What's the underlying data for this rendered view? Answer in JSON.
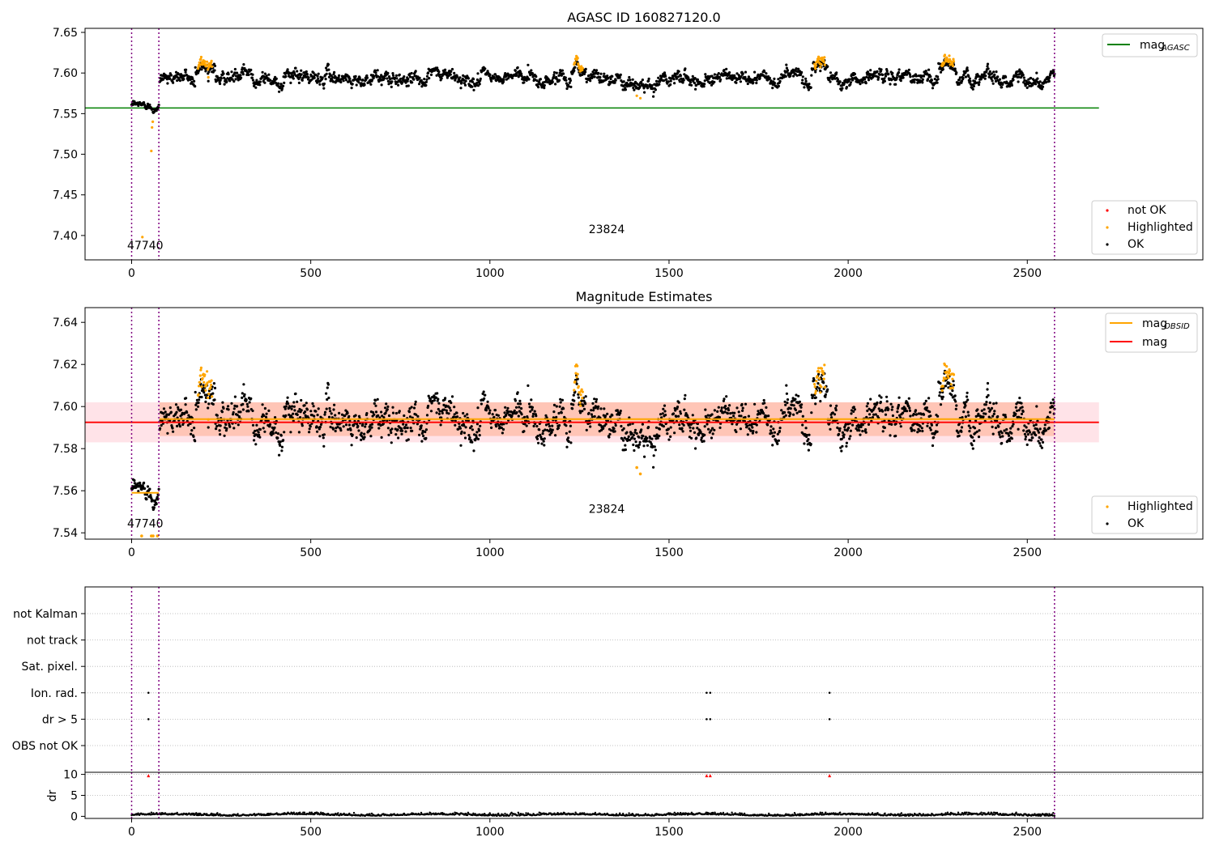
{
  "colors": {
    "ok": "#000000",
    "highlighted": "#ffa500",
    "not_ok": "#ff0000",
    "agasc_line": "#008000",
    "obsid_line": "#ffa500",
    "mag_line": "#ff0000",
    "obs_boundary": "#800080",
    "band_outer": "#ffc0cb",
    "band_inner": "#ffa07a",
    "grid": "#b0b0b0"
  },
  "chart_data": [
    {
      "type": "scatter",
      "title": "AGASC ID 160827120.0",
      "xlim": [
        -130,
        2990
      ],
      "ylim": [
        7.37,
        7.655
      ],
      "xticks": [
        0,
        500,
        1000,
        1500,
        2000,
        2500
      ],
      "yticks": [
        7.4,
        7.45,
        7.5,
        7.55,
        7.6,
        7.65
      ],
      "ytick_labels": [
        "7.40",
        "7.45",
        "7.50",
        "7.55",
        "7.60",
        "7.65"
      ],
      "obs_boundaries": [
        0,
        76,
        2576
      ],
      "obs_labels": [
        {
          "text": "47740",
          "x": 38,
          "y": 7.383
        },
        {
          "text": "23824",
          "x": 1326,
          "y": 7.403
        }
      ],
      "hlines": [
        {
          "name": "mag_AGASC",
          "y": 7.557,
          "x0": -130,
          "x1": 2700,
          "color": "#008000"
        }
      ],
      "segments": [
        {
          "x0": 0,
          "x1": 76,
          "mean": 7.559,
          "sigma": 0.004
        },
        {
          "x0": 78,
          "x1": 2576,
          "mean": 7.594,
          "sigma": 0.0075
        }
      ],
      "highlight_clusters": [
        {
          "x0": 185,
          "x1": 225,
          "offset": 0.022
        },
        {
          "x0": 1235,
          "x1": 1260,
          "offset": 0.02
        },
        {
          "x0": 1905,
          "x1": 1935,
          "offset": 0.016
        },
        {
          "x0": 2260,
          "x1": 2295,
          "offset": 0.018
        }
      ],
      "highlight_points": [
        {
          "x": 30,
          "y": 7.398
        },
        {
          "x": 55,
          "y": 7.504
        },
        {
          "x": 57,
          "y": 7.533
        },
        {
          "x": 59,
          "y": 7.54
        },
        {
          "x": 1410,
          "y": 7.572
        },
        {
          "x": 1420,
          "y": 7.569
        }
      ],
      "legend_lines": [
        {
          "label": "mag",
          "sub": "AGASC",
          "color": "#008000"
        }
      ],
      "legend_points": [
        {
          "label": "not OK",
          "color": "#ff0000"
        },
        {
          "label": "Highlighted",
          "color": "#ffa500"
        },
        {
          "label": "OK",
          "color": "#000000"
        }
      ]
    },
    {
      "type": "scatter",
      "title": "Magnitude Estimates",
      "xlim": [
        -130,
        2990
      ],
      "ylim": [
        7.537,
        7.647
      ],
      "xticks": [
        0,
        500,
        1000,
        1500,
        2000,
        2500
      ],
      "yticks": [
        7.54,
        7.56,
        7.58,
        7.6,
        7.62,
        7.64
      ],
      "ytick_labels": [
        "7.54",
        "7.56",
        "7.58",
        "7.60",
        "7.62",
        "7.64"
      ],
      "obs_boundaries": [
        0,
        76,
        2576
      ],
      "obs_labels": [
        {
          "text": "47740",
          "x": 38,
          "y": 7.5425
        },
        {
          "text": "23824",
          "x": 1326,
          "y": 7.5495
        }
      ],
      "mag": 7.5925,
      "mag_band": [
        7.583,
        7.602
      ],
      "mag_band_x": [
        -130,
        2700
      ],
      "obsid_lines": [
        {
          "x0": 0,
          "x1": 76,
          "y": 7.559
        },
        {
          "x0": 78,
          "x1": 2576,
          "y": 7.594
        }
      ],
      "obsid_bands": [
        {
          "x0": 78,
          "x1": 2576,
          "y0": 7.586,
          "y1": 7.602
        }
      ],
      "segments": [
        {
          "x0": 0,
          "x1": 76,
          "mean": 7.559,
          "sigma": 0.004
        },
        {
          "x0": 78,
          "x1": 2576,
          "mean": 7.594,
          "sigma": 0.0075
        }
      ],
      "highlight_clusters": [
        {
          "x0": 185,
          "x1": 225,
          "offset": 0.022
        },
        {
          "x0": 1235,
          "x1": 1260,
          "offset": 0.02
        },
        {
          "x0": 1905,
          "x1": 1935,
          "offset": 0.016
        },
        {
          "x0": 2260,
          "x1": 2295,
          "offset": 0.018
        }
      ],
      "highlight_points": [
        {
          "x": 28,
          "y": 7.5385
        },
        {
          "x": 55,
          "y": 7.5385
        },
        {
          "x": 60,
          "y": 7.5385
        },
        {
          "x": 72,
          "y": 7.5385
        },
        {
          "x": 1410,
          "y": 7.571
        },
        {
          "x": 1420,
          "y": 7.568
        }
      ],
      "legend_lines": [
        {
          "label": "mag",
          "sub": "OBSID",
          "color": "#ffa500"
        },
        {
          "label": "mag",
          "sub": "",
          "color": "#ff0000"
        }
      ],
      "legend_points": [
        {
          "label": "Highlighted",
          "color": "#ffa500"
        },
        {
          "label": "OK",
          "color": "#000000"
        }
      ]
    },
    {
      "type": "scatter",
      "title": "",
      "xlim": [
        -130,
        2990
      ],
      "flag_rows": [
        "OBS not OK",
        "dr > 5",
        "Ion. rad.",
        "Sat. pixel.",
        "not track",
        "not Kalman"
      ],
      "flag_points": [
        {
          "row": "dr > 5",
          "x": 47
        },
        {
          "row": "dr > 5",
          "x": 1605
        },
        {
          "row": "dr > 5",
          "x": 1615
        },
        {
          "row": "dr > 5",
          "x": 1948
        },
        {
          "row": "Ion. rad.",
          "x": 47
        },
        {
          "row": "Ion. rad.",
          "x": 1605
        },
        {
          "row": "Ion. rad.",
          "x": 1615
        },
        {
          "row": "Ion. rad.",
          "x": 1948
        }
      ],
      "obs_boundaries": [
        0,
        76,
        2576
      ]
    },
    {
      "type": "scatter",
      "title": "",
      "xlim": [
        -130,
        2990
      ],
      "ylim": [
        -0.5,
        10.5
      ],
      "xticks": [
        0,
        500,
        1000,
        1500,
        2000,
        2500
      ],
      "yticks": [
        0,
        5,
        10
      ],
      "ylabel": "dr",
      "dr_outliers": [
        {
          "x": 47,
          "y": 9.7
        },
        {
          "x": 1605,
          "y": 9.7
        },
        {
          "x": 1615,
          "y": 9.7
        },
        {
          "x": 1948,
          "y": 9.7
        }
      ],
      "dr_range": [
        0.1,
        0.9
      ],
      "obs_boundaries": [
        0,
        76,
        2576
      ]
    }
  ]
}
